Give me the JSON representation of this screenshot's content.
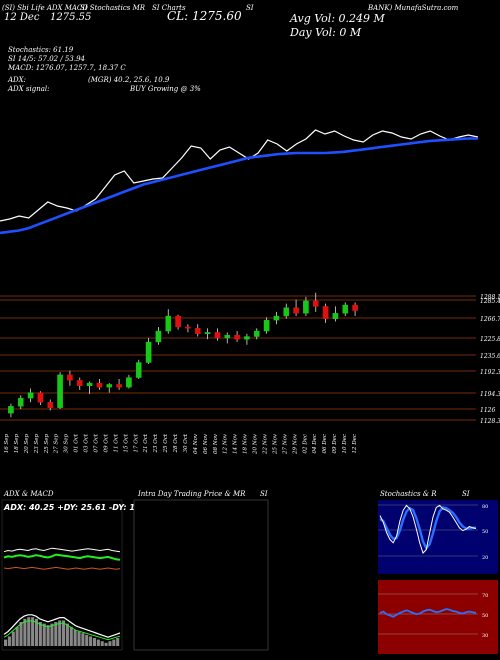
{
  "header": {
    "top_left": "(SI) Sbi Life ADX MACD",
    "top_left2": "SI Stochastics MR",
    "top_left3": "SI Charts",
    "top_left4": "SI",
    "top_right_bank": "BANK) MunafaSutra.com",
    "date_label": "12 Dec",
    "price_small": "1275.55",
    "close_label": "CL: 1275.60",
    "avg_vol": "Avg Vol: 0.249 M",
    "day_vol": "Day Vol: 0   M"
  },
  "indicators": {
    "stochastics": "Stochastics: 61.19",
    "si": "SI 14/5: 57.02 / 53.94",
    "macd": "MACD: 1276.07, 1257.7, 18.37 C",
    "adx": "ADX:",
    "adx_vals": "(MGR) 40.2, 25.6, 10.9",
    "adx_signal": "ADX  signal:",
    "buy": "BUY Growing @ 3%"
  },
  "panels": {
    "adx_title": "ADX  & MACD",
    "adx_values": "ADX: 40.25 +DY: 25.61 -DY: 10.91",
    "intraday_title": "Intra  Day Trading Price  & MR",
    "intraday_si": "SI",
    "stoch_title": "Stochastics & R",
    "stoch_si": "SI"
  },
  "colors": {
    "candle_up": "#18c818",
    "candle_down": "#e01010",
    "ma_line": "#1e50ff",
    "price_line": "#ffffff",
    "level_line": "#b44010",
    "stoch_bg": "#00006e",
    "rsi_bg": "#8c0000"
  },
  "chart_data": {
    "type": "candlestick",
    "price_levels": [
      "1288.15",
      "1285.4",
      "1266.75",
      "1225.8",
      "1235.65",
      "1192.3",
      "1194.35",
      "1126",
      "1128.35"
    ],
    "x_labels": [
      "16 Sep",
      "18 Sep",
      "20 Sep",
      "23 Sep",
      "25 Sep",
      "27 Sep",
      "30 Sep",
      "01 Oct",
      "03 Oct",
      "07 Oct",
      "09 Oct",
      "11 Oct",
      "15 Oct",
      "17 Oct",
      "21 Oct",
      "23 Oct",
      "25 Oct",
      "28 Oct",
      "30 Oct",
      "04 Nov",
      "06 Nov",
      "08 Nov",
      "12 Nov",
      "14 Nov",
      "18 Nov",
      "20 Nov",
      "22 Nov",
      "25 Nov",
      "27 Nov",
      "29 Nov",
      "02 Dec",
      "04 Dec",
      "06 Dec",
      "09 Dec",
      "10 Dec",
      "12 Dec"
    ],
    "candles": [
      {
        "o": 1120,
        "h": 1134,
        "l": 1114,
        "c": 1130
      },
      {
        "o": 1130,
        "h": 1146,
        "l": 1126,
        "c": 1142
      },
      {
        "o": 1142,
        "h": 1156,
        "l": 1136,
        "c": 1150
      },
      {
        "o": 1150,
        "h": 1152,
        "l": 1132,
        "c": 1136
      },
      {
        "o": 1136,
        "h": 1140,
        "l": 1124,
        "c": 1128
      },
      {
        "o": 1128,
        "h": 1180,
        "l": 1126,
        "c": 1176
      },
      {
        "o": 1176,
        "h": 1182,
        "l": 1160,
        "c": 1168
      },
      {
        "o": 1168,
        "h": 1172,
        "l": 1154,
        "c": 1160
      },
      {
        "o": 1160,
        "h": 1166,
        "l": 1148,
        "c": 1164
      },
      {
        "o": 1164,
        "h": 1170,
        "l": 1154,
        "c": 1158
      },
      {
        "o": 1158,
        "h": 1164,
        "l": 1150,
        "c": 1162
      },
      {
        "o": 1162,
        "h": 1170,
        "l": 1154,
        "c": 1158
      },
      {
        "o": 1158,
        "h": 1176,
        "l": 1156,
        "c": 1172
      },
      {
        "o": 1172,
        "h": 1198,
        "l": 1170,
        "c": 1194
      },
      {
        "o": 1194,
        "h": 1230,
        "l": 1192,
        "c": 1224
      },
      {
        "o": 1224,
        "h": 1246,
        "l": 1220,
        "c": 1240
      },
      {
        "o": 1240,
        "h": 1272,
        "l": 1236,
        "c": 1262
      },
      {
        "o": 1262,
        "h": 1264,
        "l": 1242,
        "c": 1246
      },
      {
        "o": 1246,
        "h": 1250,
        "l": 1238,
        "c": 1244
      },
      {
        "o": 1244,
        "h": 1250,
        "l": 1232,
        "c": 1236
      },
      {
        "o": 1236,
        "h": 1244,
        "l": 1228,
        "c": 1238
      },
      {
        "o": 1238,
        "h": 1244,
        "l": 1226,
        "c": 1230
      },
      {
        "o": 1230,
        "h": 1238,
        "l": 1222,
        "c": 1234
      },
      {
        "o": 1234,
        "h": 1240,
        "l": 1224,
        "c": 1228
      },
      {
        "o": 1228,
        "h": 1236,
        "l": 1220,
        "c": 1232
      },
      {
        "o": 1232,
        "h": 1244,
        "l": 1228,
        "c": 1240
      },
      {
        "o": 1240,
        "h": 1260,
        "l": 1236,
        "c": 1256
      },
      {
        "o": 1256,
        "h": 1268,
        "l": 1250,
        "c": 1262
      },
      {
        "o": 1262,
        "h": 1280,
        "l": 1258,
        "c": 1274
      },
      {
        "o": 1274,
        "h": 1286,
        "l": 1262,
        "c": 1266
      },
      {
        "o": 1266,
        "h": 1290,
        "l": 1262,
        "c": 1284
      },
      {
        "o": 1284,
        "h": 1296,
        "l": 1268,
        "c": 1276
      },
      {
        "o": 1276,
        "h": 1280,
        "l": 1252,
        "c": 1258
      },
      {
        "o": 1258,
        "h": 1276,
        "l": 1254,
        "c": 1266
      },
      {
        "o": 1266,
        "h": 1282,
        "l": 1262,
        "c": 1278
      },
      {
        "o": 1278,
        "h": 1282,
        "l": 1262,
        "c": 1270
      }
    ],
    "price_line": [
      1108,
      1112,
      1118,
      1114,
      1130,
      1146,
      1138,
      1134,
      1128,
      1140,
      1152,
      1176,
      1200,
      1208,
      1184,
      1188,
      1192,
      1194,
      1214,
      1234,
      1258,
      1254,
      1232,
      1250,
      1256,
      1244,
      1232,
      1244,
      1270,
      1262,
      1248,
      1262,
      1272,
      1290,
      1282,
      1288,
      1278,
      1270,
      1266,
      1280,
      1288,
      1284,
      1276,
      1272,
      1282,
      1288,
      1278,
      1270,
      1276,
      1280,
      1276
    ],
    "ma_line": [
      1120,
      1122,
      1124,
      1128,
      1134,
      1140,
      1146,
      1152,
      1158,
      1164,
      1170,
      1176,
      1182,
      1188,
      1194,
      1200,
      1204,
      1208,
      1212,
      1216,
      1220,
      1224,
      1228,
      1232,
      1236,
      1240,
      1244,
      1246,
      1248,
      1250,
      1251,
      1252,
      1252,
      1252,
      1252,
      1253,
      1254,
      1256,
      1258,
      1260,
      1262,
      1264,
      1266,
      1268,
      1270,
      1272,
      1273,
      1274,
      1275,
      1276,
      1276
    ],
    "adx_series": {
      "adx": [
        40,
        42,
        41,
        43,
        44,
        43,
        42,
        44,
        45,
        43,
        42,
        44,
        46,
        45,
        44,
        43,
        42,
        41,
        42,
        43,
        44,
        45,
        44,
        43,
        42,
        43,
        44,
        42,
        41,
        40
      ],
      "plus_di": [
        30,
        32,
        31,
        33,
        34,
        33,
        31,
        32,
        34,
        33,
        31,
        30,
        32,
        35,
        34,
        33,
        32,
        31,
        30,
        29,
        31,
        32,
        31,
        30,
        29,
        30,
        31,
        29,
        27,
        26
      ],
      "minus_di": [
        12,
        11,
        12,
        13,
        12,
        11,
        12,
        13,
        12,
        11,
        10,
        11,
        12,
        13,
        12,
        11,
        10,
        11,
        12,
        11,
        10,
        11,
        12,
        11,
        10,
        11,
        12,
        11,
        10,
        11
      ]
    },
    "macd_hist": [
      4,
      6,
      9,
      12,
      15,
      17,
      18,
      18,
      17,
      15,
      14,
      13,
      14,
      15,
      16,
      16,
      14,
      12,
      10,
      9,
      8,
      7,
      6,
      5,
      4,
      3,
      2,
      3,
      4,
      5
    ],
    "stoch_k": [
      80,
      70,
      55,
      45,
      40,
      50,
      72,
      88,
      95,
      90,
      78,
      60,
      40,
      25,
      30,
      55,
      78,
      92,
      95,
      90,
      88,
      85,
      78,
      70,
      62,
      58,
      60,
      64,
      62,
      61
    ],
    "stoch_d": [
      75,
      72,
      62,
      52,
      46,
      47,
      58,
      74,
      86,
      91,
      88,
      76,
      60,
      42,
      32,
      38,
      54,
      72,
      86,
      92,
      91,
      88,
      84,
      78,
      70,
      64,
      61,
      61,
      62,
      62
    ],
    "rsi": [
      58,
      60,
      56,
      54,
      52,
      55,
      58,
      60,
      62,
      60,
      58,
      56,
      57,
      60,
      62,
      63,
      61,
      59,
      60,
      62,
      64,
      63,
      61,
      60,
      58,
      57,
      59,
      60,
      59,
      58
    ],
    "stoch_levels": [
      "80",
      "50",
      "20"
    ],
    "rsi_levels": [
      "70",
      "50",
      "30"
    ]
  }
}
